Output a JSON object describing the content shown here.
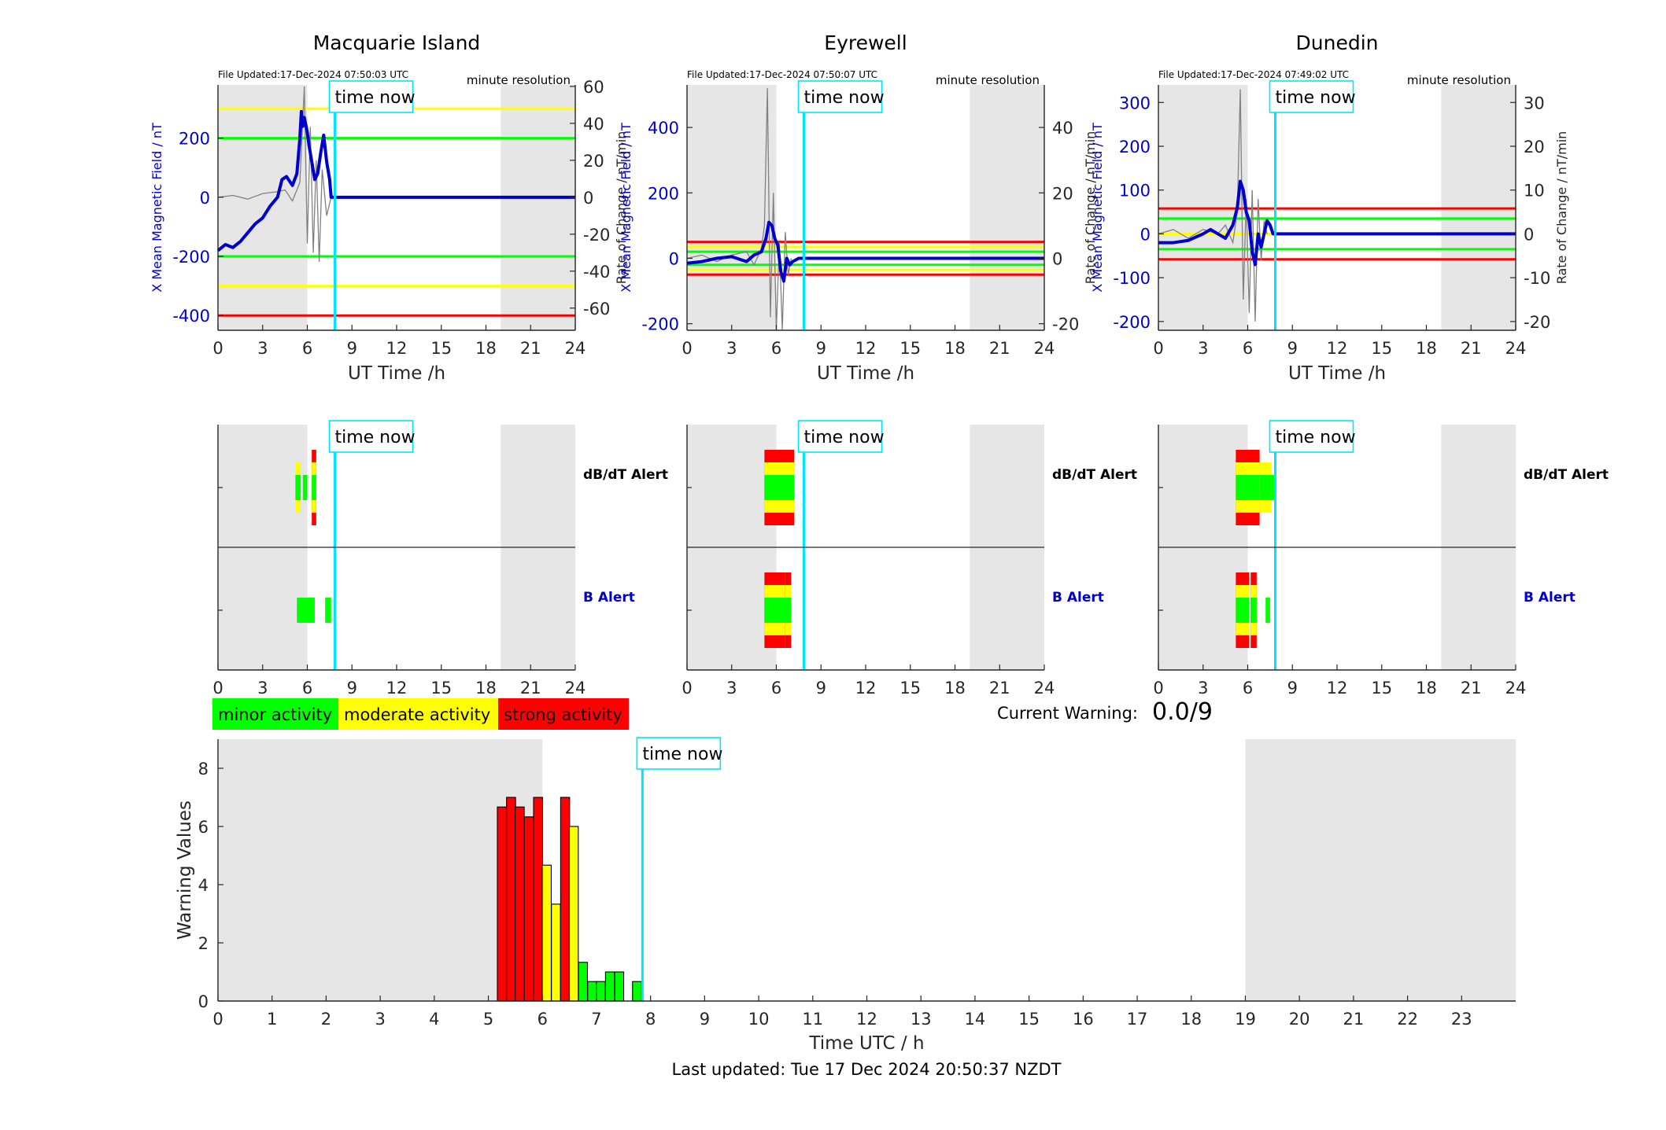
{
  "footer": {
    "last_updated": "Last updated: Tue 17 Dec 2024 20:50:37 NZDT"
  },
  "legend": {
    "minor": "minor activity",
    "moderate": "moderate activity",
    "strong": "strong activity",
    "colors": {
      "minor": "#00ff00",
      "moderate": "#ffff00",
      "strong": "#ff0000"
    }
  },
  "current_warning": {
    "label": "Current Warning:",
    "value": "0.0/9"
  },
  "time_now_label": "time now",
  "colors": {
    "field": "#0000cc",
    "rate": "#808080",
    "time_now": "#00e5ff",
    "night_shading": "#e6e6e6"
  },
  "chart_data": [
    {
      "type": "line",
      "panel": "magnetic-field",
      "title": "Macquarie Island",
      "file_updated": "File Updated:17-Dec-2024 07:50:03 UTC",
      "resolution_note": "minute resolution",
      "xlabel": "UT Time /h",
      "ylabel_left": "X Mean Magnetic Field / nT",
      "ylabel_right": "Rate of Change / nT/min",
      "xlim": [
        0,
        24
      ],
      "xticks": [
        0,
        3,
        6,
        9,
        12,
        15,
        18,
        21,
        24
      ],
      "ylim_left": [
        -450,
        380
      ],
      "yticks_left": [
        -400,
        -200,
        0,
        200
      ],
      "ylim_right": [
        -72,
        60.8
      ],
      "yticks_right": [
        -60,
        -40,
        -20,
        0,
        20,
        40,
        60
      ],
      "night_shading_hours": [
        [
          0,
          6
        ],
        [
          19,
          24
        ]
      ],
      "time_now_hour": 7.85,
      "threshold_lines": [
        {
          "color": "yellow",
          "value": 300
        },
        {
          "color": "green",
          "value": 200
        },
        {
          "color": "green",
          "value": -200
        },
        {
          "color": "yellow",
          "value": -300
        },
        {
          "color": "red",
          "value": -400
        }
      ],
      "series": [
        {
          "name": "X Mean Magnetic Field",
          "x": [
            0,
            0.5,
            1,
            1.5,
            2,
            2.5,
            3,
            3.5,
            4,
            4.3,
            4.6,
            5,
            5.3,
            5.5,
            5.6,
            5.7,
            5.8,
            6,
            6.1,
            6.3,
            6.5,
            6.7,
            6.9,
            7.1,
            7.3,
            7.5,
            7.6,
            7.7,
            7.9,
            8,
            24
          ],
          "values": [
            -180,
            -160,
            -170,
            -150,
            -120,
            -90,
            -70,
            -30,
            0,
            60,
            70,
            40,
            80,
            200,
            290,
            240,
            270,
            220,
            180,
            120,
            60,
            80,
            150,
            210,
            120,
            60,
            0,
            0,
            0,
            0,
            0
          ]
        },
        {
          "name": "Rate of Change",
          "x": [
            0,
            1,
            2,
            3,
            4,
            4.5,
            5,
            5.5,
            5.8,
            6,
            6.2,
            6.4,
            6.6,
            6.8,
            7,
            7.3,
            7.6
          ],
          "values": [
            0,
            1,
            -1,
            2,
            3,
            4,
            -2,
            8,
            60,
            -25,
            38,
            -30,
            20,
            -35,
            15,
            -10,
            0
          ]
        }
      ]
    },
    {
      "type": "line",
      "panel": "magnetic-field",
      "title": "Eyrewell",
      "file_updated": "File Updated:17-Dec-2024 07:50:07 UTC",
      "resolution_note": "minute resolution",
      "xlabel": "UT Time /h",
      "ylabel_left": "X Mean Magnetic Field / nT",
      "ylabel_right": "Rate of Change / nT/min",
      "xlim": [
        0,
        24
      ],
      "xticks": [
        0,
        3,
        6,
        9,
        12,
        15,
        18,
        21,
        24
      ],
      "ylim_left": [
        -220,
        530
      ],
      "yticks_left": [
        -200,
        0,
        200,
        400
      ],
      "ylim_right": [
        -22,
        53
      ],
      "yticks_right": [
        -20,
        0,
        20,
        40
      ],
      "night_shading_hours": [
        [
          0,
          6
        ],
        [
          19,
          24
        ]
      ],
      "time_now_hour": 7.85,
      "threshold_lines": [
        {
          "color": "red",
          "value": 50
        },
        {
          "color": "yellow",
          "value": 35
        },
        {
          "color": "green",
          "value": 20
        },
        {
          "color": "green",
          "value": -20
        },
        {
          "color": "yellow",
          "value": -35
        },
        {
          "color": "red",
          "value": -50
        }
      ],
      "series": [
        {
          "name": "X Mean Magnetic Field",
          "x": [
            0,
            1,
            2,
            3,
            4,
            4.5,
            5,
            5.3,
            5.5,
            5.7,
            5.9,
            6.1,
            6.3,
            6.5,
            6.7,
            6.9,
            7.1,
            7.5,
            8,
            24
          ],
          "values": [
            -15,
            -10,
            0,
            5,
            -10,
            10,
            20,
            60,
            110,
            100,
            60,
            40,
            -40,
            -70,
            0,
            -20,
            -10,
            0,
            0,
            0
          ]
        },
        {
          "name": "Rate of Change",
          "x": [
            0,
            1,
            2,
            3,
            4,
            4.5,
            5,
            5.2,
            5.4,
            5.6,
            5.8,
            6,
            6.2,
            6.4,
            6.6,
            6.8,
            7
          ],
          "values": [
            0,
            1,
            -1,
            1,
            2,
            -2,
            3,
            10,
            52,
            -18,
            20,
            -22,
            5,
            -22,
            8,
            -5,
            0
          ]
        }
      ]
    },
    {
      "type": "line",
      "panel": "magnetic-field",
      "title": "Dunedin",
      "file_updated": "File Updated:17-Dec-2024 07:49:02 UTC",
      "resolution_note": "minute resolution",
      "xlabel": "UT Time /h",
      "ylabel_left": "X Mean Magnetic Field / nT",
      "ylabel_right": "Rate of Change / nT/min",
      "xlim": [
        0,
        24
      ],
      "xticks": [
        0,
        3,
        6,
        9,
        12,
        15,
        18,
        21,
        24
      ],
      "ylim_left": [
        -220,
        340
      ],
      "yticks_left": [
        -200,
        -100,
        0,
        100,
        200,
        300
      ],
      "ylim_right": [
        -22,
        34
      ],
      "yticks_right": [
        -20,
        -10,
        0,
        10,
        20,
        30
      ],
      "night_shading_hours": [
        [
          0,
          6
        ],
        [
          19,
          24
        ]
      ],
      "time_now_hour": 7.85,
      "threshold_lines": [
        {
          "color": "red",
          "value": 58
        },
        {
          "color": "green",
          "value": 35
        },
        {
          "color": "yellow",
          "value": 0
        },
        {
          "color": "green",
          "value": -35
        },
        {
          "color": "red",
          "value": -58
        }
      ],
      "series": [
        {
          "name": "X Mean Magnetic Field",
          "x": [
            0,
            1,
            2,
            3,
            3.5,
            4,
            4.5,
            5,
            5.3,
            5.5,
            5.7,
            5.9,
            6.1,
            6.3,
            6.5,
            6.7,
            6.9,
            7.1,
            7.3,
            7.5,
            7.7,
            8,
            24
          ],
          "values": [
            -20,
            -20,
            -15,
            0,
            10,
            0,
            -10,
            20,
            60,
            120,
            100,
            50,
            30,
            -40,
            -70,
            0,
            -30,
            0,
            30,
            20,
            0,
            0,
            0
          ]
        },
        {
          "name": "Rate of Change",
          "x": [
            0,
            1,
            2,
            3,
            4,
            4.5,
            5,
            5.3,
            5.5,
            5.7,
            5.9,
            6.1,
            6.3,
            6.5,
            6.7,
            6.9,
            7.1,
            7.3
          ],
          "values": [
            0,
            1,
            -1,
            1,
            0,
            2,
            -2,
            5,
            33,
            -15,
            8,
            -18,
            10,
            -20,
            8,
            -6,
            3,
            0
          ]
        }
      ]
    },
    {
      "type": "heatmap",
      "panel": "alerts",
      "station": "Macquarie Island",
      "rows": [
        "dB/dT Alert",
        "B Alert"
      ],
      "xlim": [
        0,
        24
      ],
      "xticks": [
        0,
        3,
        6,
        9,
        12,
        15,
        18,
        21,
        24
      ],
      "night_shading_hours": [
        [
          0,
          6
        ],
        [
          19,
          24
        ]
      ],
      "time_now_hour": 7.85,
      "blocks": [
        {
          "row": "dB/dT Alert",
          "start": 5.2,
          "end": 5.55,
          "level": "moderate"
        },
        {
          "row": "dB/dT Alert",
          "start": 5.7,
          "end": 6.0,
          "level": "minor"
        },
        {
          "row": "dB/dT Alert",
          "start": 6.3,
          "end": 6.6,
          "level": "strong"
        },
        {
          "row": "B Alert",
          "start": 5.3,
          "end": 6.5,
          "level": "minor"
        },
        {
          "row": "B Alert",
          "start": 7.2,
          "end": 7.6,
          "level": "minor"
        }
      ]
    },
    {
      "type": "heatmap",
      "panel": "alerts",
      "station": "Eyrewell",
      "rows": [
        "dB/dT Alert",
        "B Alert"
      ],
      "xlim": [
        0,
        24
      ],
      "xticks": [
        0,
        3,
        6,
        9,
        12,
        15,
        18,
        21,
        24
      ],
      "night_shading_hours": [
        [
          0,
          6
        ],
        [
          19,
          24
        ]
      ],
      "time_now_hour": 7.85,
      "blocks": [
        {
          "row": "dB/dT Alert",
          "start": 5.2,
          "end": 7.2,
          "level": "strong"
        },
        {
          "row": "B Alert",
          "start": 5.2,
          "end": 6.6,
          "level": "strong"
        },
        {
          "row": "B Alert",
          "start": 6.6,
          "end": 7.0,
          "level": "strong"
        }
      ]
    },
    {
      "type": "heatmap",
      "panel": "alerts",
      "station": "Dunedin",
      "rows": [
        "dB/dT Alert",
        "B Alert"
      ],
      "xlim": [
        0,
        24
      ],
      "xticks": [
        0,
        3,
        6,
        9,
        12,
        15,
        18,
        21,
        24
      ],
      "night_shading_hours": [
        [
          0,
          6
        ],
        [
          19,
          24
        ]
      ],
      "time_now_hour": 7.85,
      "blocks": [
        {
          "row": "dB/dT Alert",
          "start": 5.2,
          "end": 6.8,
          "level": "strong"
        },
        {
          "row": "dB/dT Alert",
          "start": 6.8,
          "end": 7.6,
          "level": "moderate"
        },
        {
          "row": "dB/dT Alert",
          "start": 7.6,
          "end": 7.85,
          "level": "minor"
        },
        {
          "row": "B Alert",
          "start": 5.2,
          "end": 6.1,
          "level": "strong"
        },
        {
          "row": "B Alert",
          "start": 6.2,
          "end": 6.6,
          "level": "strong"
        },
        {
          "row": "B Alert",
          "start": 7.2,
          "end": 7.5,
          "level": "minor"
        }
      ]
    },
    {
      "type": "bar",
      "panel": "warning-values",
      "xlabel": "Time UTC / h",
      "ylabel": "Warning Values",
      "xlim": [
        0,
        24
      ],
      "xticks": [
        0,
        1,
        2,
        3,
        4,
        5,
        6,
        7,
        8,
        9,
        10,
        11,
        12,
        13,
        14,
        15,
        16,
        17,
        18,
        19,
        20,
        21,
        22,
        23
      ],
      "ylim": [
        0,
        9
      ],
      "yticks": [
        0,
        2,
        4,
        6,
        8
      ],
      "night_shading_hours": [
        [
          0,
          6
        ],
        [
          19,
          24
        ]
      ],
      "time_now_hour": 7.85,
      "bin_width_hours": 0.1667,
      "x": [
        5.25,
        5.42,
        5.58,
        5.75,
        5.92,
        6.08,
        6.25,
        6.42,
        6.58,
        6.75,
        6.92,
        7.08,
        7.25,
        7.42,
        7.75
      ],
      "values": [
        6.67,
        7.0,
        6.67,
        6.33,
        7.0,
        4.67,
        3.33,
        7.0,
        6.0,
        1.33,
        0.67,
        0.67,
        1.0,
        1.0,
        0.67
      ],
      "levels": [
        "strong",
        "strong",
        "strong",
        "strong",
        "strong",
        "moderate",
        "moderate",
        "strong",
        "moderate",
        "minor",
        "minor",
        "minor",
        "minor",
        "minor",
        "minor"
      ]
    }
  ]
}
